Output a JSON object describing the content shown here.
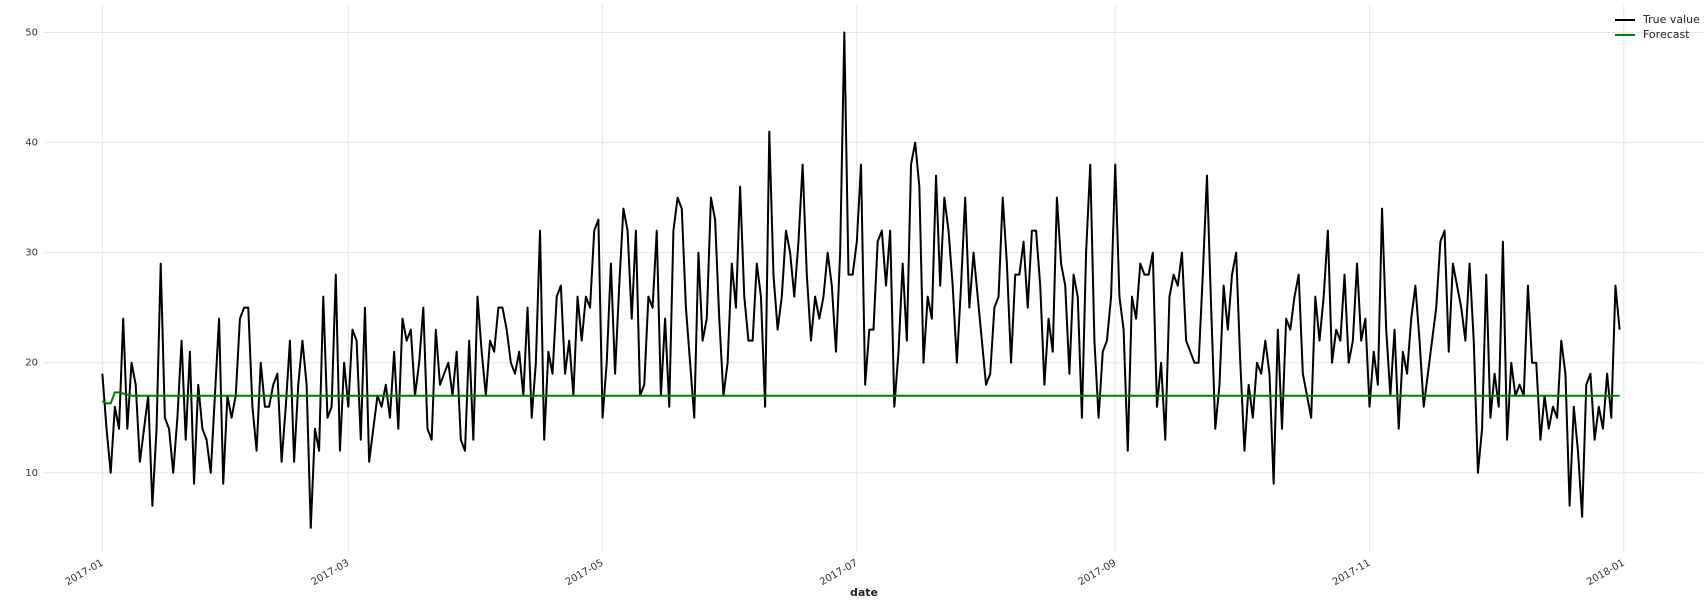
{
  "chart_data": {
    "type": "line",
    "x_label": "date",
    "xlim": [
      -14,
      384
    ],
    "xticks": [
      {
        "value": 0,
        "label": "2017-01"
      },
      {
        "value": 59,
        "label": "2017-03"
      },
      {
        "value": 120,
        "label": "2017-05"
      },
      {
        "value": 181,
        "label": "2017-07"
      },
      {
        "value": 243,
        "label": "2017-09"
      },
      {
        "value": 304,
        "label": "2017-11"
      },
      {
        "value": 365,
        "label": "2018-01"
      }
    ],
    "ylim": [
      2.8,
      52.5
    ],
    "yticks": [
      10,
      20,
      30,
      40,
      50
    ],
    "grid": true,
    "legend": "upper right",
    "x": [
      0,
      1,
      2,
      3,
      4,
      5,
      6,
      7,
      8,
      9,
      10,
      11,
      12,
      13,
      14,
      15,
      16,
      17,
      18,
      19,
      20,
      21,
      22,
      23,
      24,
      25,
      26,
      27,
      28,
      29,
      30,
      31,
      32,
      33,
      34,
      35,
      36,
      37,
      38,
      39,
      40,
      41,
      42,
      43,
      44,
      45,
      46,
      47,
      48,
      49,
      50,
      51,
      52,
      53,
      54,
      55,
      56,
      57,
      58,
      59,
      60,
      61,
      62,
      63,
      64,
      65,
      66,
      67,
      68,
      69,
      70,
      71,
      72,
      73,
      74,
      75,
      76,
      77,
      78,
      79,
      80,
      81,
      82,
      83,
      84,
      85,
      86,
      87,
      88,
      89,
      90,
      91,
      92,
      93,
      94,
      95,
      96,
      97,
      98,
      99,
      100,
      101,
      102,
      103,
      104,
      105,
      106,
      107,
      108,
      109,
      110,
      111,
      112,
      113,
      114,
      115,
      116,
      117,
      118,
      119,
      120,
      121,
      122,
      123,
      124,
      125,
      126,
      127,
      128,
      129,
      130,
      131,
      132,
      133,
      134,
      135,
      136,
      137,
      138,
      139,
      140,
      141,
      142,
      143,
      144,
      145,
      146,
      147,
      148,
      149,
      150,
      151,
      152,
      153,
      154,
      155,
      156,
      157,
      158,
      159,
      160,
      161,
      162,
      163,
      164,
      165,
      166,
      167,
      168,
      169,
      170,
      171,
      172,
      173,
      174,
      175,
      176,
      177,
      178,
      179,
      180,
      181,
      182,
      183,
      184,
      185,
      186,
      187,
      188,
      189,
      190,
      191,
      192,
      193,
      194,
      195,
      196,
      197,
      198,
      199,
      200,
      201,
      202,
      203,
      204,
      205,
      206,
      207,
      208,
      209,
      210,
      211,
      212,
      213,
      214,
      215,
      216,
      217,
      218,
      219,
      220,
      221,
      222,
      223,
      224,
      225,
      226,
      227,
      228,
      229,
      230,
      231,
      232,
      233,
      234,
      235,
      236,
      237,
      238,
      239,
      240,
      241,
      242,
      243,
      244,
      245,
      246,
      247,
      248,
      249,
      250,
      251,
      252,
      253,
      254,
      255,
      256,
      257,
      258,
      259,
      260,
      261,
      262,
      263,
      264,
      265,
      266,
      267,
      268,
      269,
      270,
      271,
      272,
      273,
      274,
      275,
      276,
      277,
      278,
      279,
      280,
      281,
      282,
      283,
      284,
      285,
      286,
      287,
      288,
      289,
      290,
      291,
      292,
      293,
      294,
      295,
      296,
      297,
      298,
      299,
      300,
      301,
      302,
      303,
      304,
      305,
      306,
      307,
      308,
      309,
      310,
      311,
      312,
      313,
      314,
      315,
      316,
      317,
      318,
      319,
      320,
      321,
      322,
      323,
      324,
      325,
      326,
      327,
      328,
      329,
      330,
      331,
      332,
      333,
      334,
      335,
      336,
      337,
      338,
      339,
      340,
      341,
      342,
      343,
      344,
      345,
      346,
      347,
      348,
      349,
      350,
      351,
      352,
      353,
      354,
      355,
      356,
      357,
      358,
      359,
      360,
      361,
      362,
      363,
      364
    ],
    "series": [
      {
        "name": "True value",
        "color": "#000000",
        "values": [
          19,
          14,
          10,
          16,
          14,
          24,
          14,
          20,
          18,
          11,
          14,
          17,
          7,
          14,
          29,
          15,
          14,
          10,
          15,
          22,
          13,
          21,
          9,
          18,
          14,
          13,
          10,
          17,
          24,
          9,
          17,
          15,
          17,
          24,
          25,
          25,
          16,
          12,
          20,
          16,
          16,
          18,
          19,
          11,
          16,
          22,
          11,
          18,
          22,
          18,
          5,
          14,
          12,
          26,
          15,
          16,
          28,
          12,
          20,
          16,
          23,
          22,
          13,
          25,
          11,
          14,
          17,
          16,
          18,
          15,
          21,
          14,
          24,
          22,
          23,
          17,
          20,
          25,
          14,
          13,
          23,
          18,
          19,
          20,
          17,
          21,
          13,
          12,
          22,
          13,
          26,
          21,
          17,
          22,
          21,
          25,
          25,
          23,
          20,
          19,
          21,
          17,
          25,
          15,
          20,
          32,
          13,
          21,
          19,
          26,
          27,
          19,
          22,
          17,
          26,
          22,
          26,
          25,
          32,
          33,
          15,
          20,
          29,
          19,
          27,
          34,
          32,
          24,
          32,
          17,
          18,
          26,
          25,
          32,
          17,
          24,
          16,
          32,
          35,
          34,
          25,
          20,
          15,
          30,
          22,
          24,
          35,
          33,
          24,
          17,
          20,
          29,
          25,
          36,
          26,
          22,
          22,
          29,
          26,
          16,
          41,
          28,
          23,
          26,
          32,
          30,
          26,
          31,
          38,
          28,
          22,
          26,
          24,
          26,
          30,
          27,
          21,
          30,
          50,
          28,
          28,
          31,
          38,
          18,
          23,
          23,
          31,
          32,
          27,
          32,
          16,
          21,
          29,
          22,
          38,
          40,
          36,
          20,
          26,
          24,
          37,
          27,
          35,
          32,
          27,
          20,
          27,
          35,
          25,
          30,
          26,
          22,
          18,
          19,
          25,
          26,
          35,
          29,
          20,
          28,
          28,
          31,
          25,
          32,
          32,
          27,
          18,
          24,
          21,
          35,
          29,
          27,
          19,
          28,
          26,
          15,
          30,
          38,
          22,
          15,
          21,
          22,
          26,
          38,
          26,
          23,
          12,
          26,
          24,
          29,
          28,
          28,
          30,
          16,
          20,
          13,
          26,
          28,
          27,
          30,
          22,
          21,
          20,
          20,
          28,
          37,
          25,
          14,
          18,
          27,
          23,
          28,
          30,
          20,
          12,
          18,
          15,
          20,
          19,
          22,
          19,
          9,
          23,
          14,
          24,
          23,
          26,
          28,
          19,
          17,
          15,
          26,
          22,
          26,
          32,
          20,
          23,
          22,
          28,
          20,
          22,
          29,
          22,
          24,
          16,
          21,
          18,
          34,
          23,
          17,
          23,
          14,
          21,
          19,
          24,
          27,
          22,
          16,
          19,
          22,
          25,
          31,
          32,
          21,
          29,
          27,
          25,
          22,
          29,
          22,
          10,
          14,
          28,
          15,
          19,
          16,
          31,
          13,
          20,
          17,
          18,
          17,
          27,
          20,
          20,
          13,
          17,
          14,
          16,
          15,
          22,
          19,
          7,
          16,
          12,
          6,
          18,
          19,
          13,
          16,
          14,
          19,
          15,
          27,
          23
        ]
      },
      {
        "name": "Forecast",
        "color": "#008000",
        "values": [
          16.5,
          16.3,
          16.3,
          17.3,
          17.3,
          17.2,
          17.1,
          17,
          17,
          17,
          17,
          17,
          17,
          17,
          17,
          17,
          17,
          17,
          17,
          17,
          17,
          17,
          17,
          17,
          17,
          17,
          17,
          17,
          17,
          17,
          17,
          17,
          17,
          17,
          17,
          17,
          17,
          17,
          17,
          17,
          17,
          17,
          17,
          17,
          17,
          17,
          17,
          17,
          17,
          17,
          17,
          17,
          17,
          17,
          17,
          17,
          17,
          17,
          17,
          17,
          17,
          17,
          17,
          17,
          17,
          17,
          17,
          17,
          17,
          17,
          17,
          17,
          17,
          17,
          17,
          17,
          17,
          17,
          17,
          17,
          17,
          17,
          17,
          17,
          17,
          17,
          17,
          17,
          17,
          17,
          17,
          17,
          17,
          17,
          17,
          17,
          17,
          17,
          17,
          17,
          17,
          17,
          17,
          17,
          17,
          17,
          17,
          17,
          17,
          17,
          17,
          17,
          17,
          17,
          17,
          17,
          17,
          17,
          17,
          17,
          17,
          17,
          17,
          17,
          17,
          17,
          17,
          17,
          17,
          17,
          17,
          17,
          17,
          17,
          17,
          17,
          17,
          17,
          17,
          17,
          17,
          17,
          17,
          17,
          17,
          17,
          17,
          17,
          17,
          17,
          17,
          17,
          17,
          17,
          17,
          17,
          17,
          17,
          17,
          17,
          17,
          17,
          17,
          17,
          17,
          17,
          17,
          17,
          17,
          17,
          17,
          17,
          17,
          17,
          17,
          17,
          17,
          17,
          17,
          17,
          17,
          17,
          17,
          17,
          17,
          17,
          17,
          17,
          17,
          17,
          17,
          17,
          17,
          17,
          17,
          17,
          17,
          17,
          17,
          17,
          17,
          17,
          17,
          17,
          17,
          17,
          17,
          17,
          17,
          17,
          17,
          17,
          17,
          17,
          17,
          17,
          17,
          17,
          17,
          17,
          17,
          17,
          17,
          17,
          17,
          17,
          17,
          17,
          17,
          17,
          17,
          17,
          17,
          17,
          17,
          17,
          17,
          17,
          17,
          17,
          17,
          17,
          17,
          17,
          17,
          17,
          17,
          17,
          17,
          17,
          17,
          17,
          17,
          17,
          17,
          17,
          17,
          17,
          17,
          17,
          17,
          17,
          17,
          17,
          17,
          17,
          17,
          17,
          17,
          17,
          17,
          17,
          17,
          17,
          17,
          17,
          17,
          17,
          17,
          17,
          17,
          17,
          17,
          17,
          17,
          17,
          17,
          17,
          17,
          17,
          17,
          17,
          17,
          17,
          17,
          17,
          17,
          17,
          17,
          17,
          17,
          17,
          17,
          17,
          17,
          17,
          17,
          17,
          17,
          17,
          17,
          17,
          17,
          17,
          17,
          17,
          17,
          17,
          17,
          17,
          17,
          17,
          17,
          17,
          17,
          17,
          17,
          17,
          17,
          17,
          17,
          17,
          17,
          17,
          17,
          17,
          17,
          17,
          17,
          17,
          17,
          17,
          17,
          17,
          17,
          17,
          17,
          17,
          17,
          17,
          17,
          17,
          17,
          17,
          17,
          17,
          17,
          17,
          17,
          17,
          17,
          17,
          17,
          17,
          17
        ]
      }
    ]
  }
}
